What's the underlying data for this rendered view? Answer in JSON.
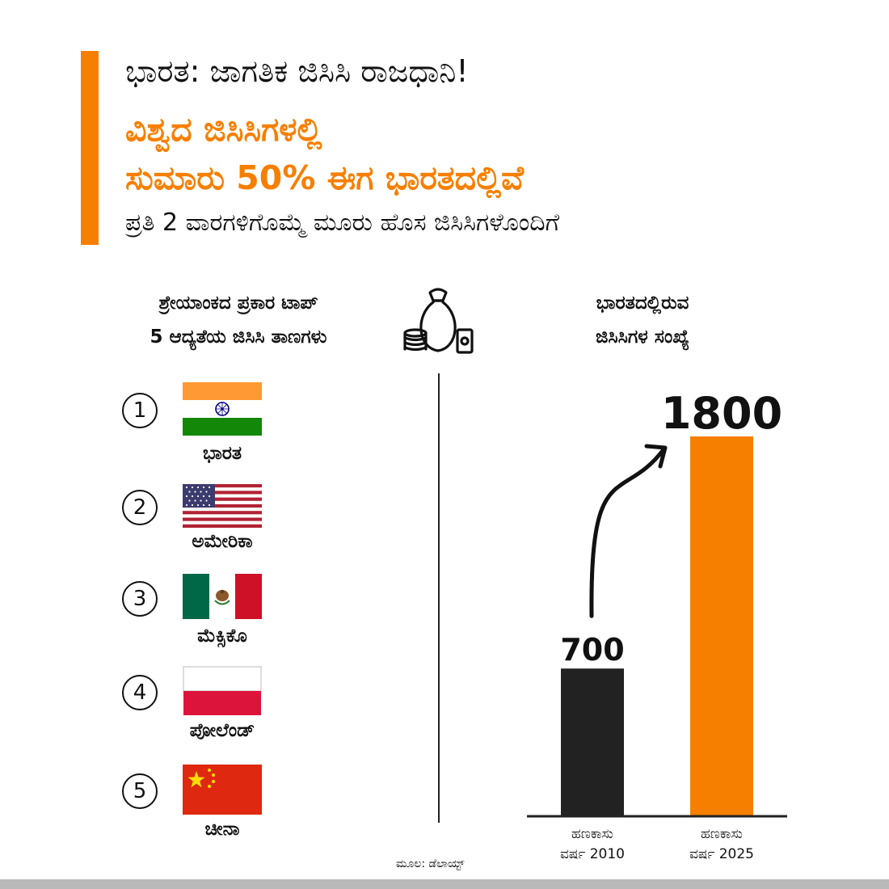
{
  "header": {
    "kicker": "ಭಾರತ: ಜಾಗತಿಕ ಜಿಸಿಸಿ ರಾಜಧಾನಿ!",
    "headline_line1": "ವಿಶ್ವದ ಜಿಸಿಸಿಗಳಲ್ಲಿ",
    "headline_line2": "ಸುಮಾರು 50% ಈಗ ಭಾರತದಲ್ಲಿವೆ",
    "subline": "ಪ್ರತಿ 2 ವಾರಗಳಿಗೊಮ್ಮೆ ಮೂರು ಹೊಸ ಜಿಸಿಸಿಗಳೊಂದಿಗೆ"
  },
  "left_column": {
    "heading_line1": "ಶ್ರೇಯಾಂಕದ ಪ್ರಕಾರ ಟಾಪ್",
    "heading_line2": "5 ಆದ್ಯತೆಯ ಜಿಸಿಸಿ ತಾಣಗಳು",
    "rankings": [
      {
        "rank": "1",
        "country": "ಭಾರತ",
        "flag_icon": "india-flag-icon"
      },
      {
        "rank": "2",
        "country": "ಅಮೇರಿಕಾ",
        "flag_icon": "usa-flag-icon"
      },
      {
        "rank": "3",
        "country": "ಮೆಕ್ಸಿಕೊ",
        "flag_icon": "mexico-flag-icon"
      },
      {
        "rank": "4",
        "country": "ಪೋಲೆಂಡ್",
        "flag_icon": "poland-flag-icon"
      },
      {
        "rank": "5",
        "country": "ಚೀನಾ",
        "flag_icon": "china-flag-icon"
      }
    ]
  },
  "center_icon": "money-bag-icon",
  "right_column": {
    "heading_line1": "ಭಾರತದಲ್ಲಿರುವ",
    "heading_line2": "ಜಿಸಿಸಿಗಳ ಸಂಖ್ಯೆ"
  },
  "chart_data": {
    "type": "bar",
    "categories": [
      [
        "ಹಣಕಾಸು",
        "ವರ್ಷ 2010"
      ],
      [
        "ಹಣಕಾಸು",
        "ವರ್ಷ 2025"
      ]
    ],
    "values": [
      700,
      1800
    ],
    "value_labels": [
      "700",
      "1800"
    ],
    "colors": [
      "#222222",
      "#f77f00"
    ],
    "annotation": "growth-arrow",
    "title": "",
    "xlabel": "",
    "ylabel": ""
  },
  "source": "ಮೂಲ: ಡೆಲಾಯ್ಟ್",
  "colors": {
    "accent": "#f77f00",
    "text": "#111111",
    "footer": "#b9b9b9"
  }
}
